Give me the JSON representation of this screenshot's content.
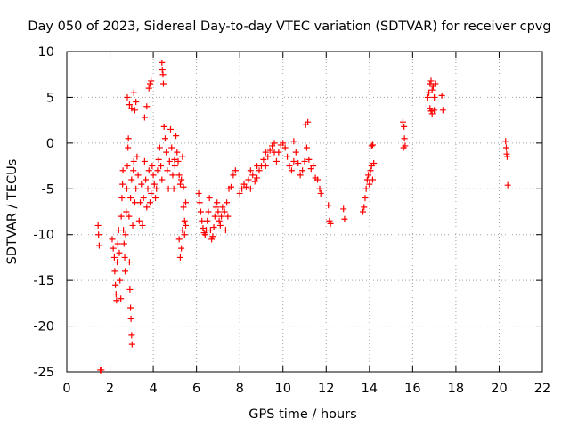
{
  "chart_data": {
    "type": "scatter",
    "title": "Day 050 of 2023, Sidereal Day-to-day VTEC variation (SDTVAR) for receiver cpvg",
    "xlabel": "GPS time / hours",
    "ylabel": "SDTVAR / TECUs",
    "xlim": [
      0,
      22
    ],
    "ylim": [
      -25,
      10
    ],
    "xticks": [
      "0",
      "2",
      "4",
      "6",
      "8",
      "10",
      "12",
      "14",
      "16",
      "18",
      "20",
      "22"
    ],
    "yticks": [
      "-25",
      "-20",
      "-15",
      "-10",
      "-5",
      "0",
      "5",
      "10"
    ],
    "xtick_values": [
      0,
      2,
      4,
      6,
      8,
      10,
      12,
      14,
      16,
      18,
      20,
      22
    ],
    "ytick_values": [
      -25,
      -20,
      -15,
      -10,
      -5,
      0,
      5,
      10
    ],
    "grid": true,
    "marker": "+",
    "color": "#ff0000",
    "series": [
      {
        "name": "SDTVAR",
        "points": [
          [
            1.45,
            -9.0
          ],
          [
            1.47,
            -10.0
          ],
          [
            1.5,
            -11.2
          ],
          [
            1.55,
            -24.8
          ],
          [
            1.6,
            -24.8
          ],
          [
            2.1,
            -10.5
          ],
          [
            2.15,
            -11.5
          ],
          [
            2.2,
            -12.5
          ],
          [
            2.22,
            -14.0
          ],
          [
            2.25,
            -15.5
          ],
          [
            2.28,
            -16.5
          ],
          [
            2.3,
            -17.2
          ],
          [
            2.33,
            -13.0
          ],
          [
            2.36,
            -11.0
          ],
          [
            2.4,
            -9.5
          ],
          [
            2.43,
            -12.0
          ],
          [
            2.46,
            -15.0
          ],
          [
            2.5,
            -17.0
          ],
          [
            2.52,
            -8.0
          ],
          [
            2.55,
            -6.0
          ],
          [
            2.58,
            -4.5
          ],
          [
            2.6,
            -3.0
          ],
          [
            2.62,
            -9.5
          ],
          [
            2.65,
            -11.0
          ],
          [
            2.68,
            -12.5
          ],
          [
            2.7,
            -14.0
          ],
          [
            2.72,
            -10.0
          ],
          [
            2.75,
            -7.5
          ],
          [
            2.78,
            -5.0
          ],
          [
            2.8,
            -2.5
          ],
          [
            2.83,
            -0.5
          ],
          [
            2.85,
            0.5
          ],
          [
            2.9,
            -13.0
          ],
          [
            2.92,
            -16.0
          ],
          [
            2.95,
            -18.0
          ],
          [
            2.97,
            -19.2
          ],
          [
            3.0,
            -21.0
          ],
          [
            3.02,
            -22.0
          ],
          [
            2.88,
            -8.0
          ],
          [
            2.95,
            -6.0
          ],
          [
            3.0,
            -4.0
          ],
          [
            3.05,
            -9.0
          ],
          [
            3.08,
            -3.0
          ],
          [
            3.1,
            -2.0
          ],
          [
            3.15,
            -6.5
          ],
          [
            3.2,
            -5.0
          ],
          [
            3.25,
            -1.5
          ],
          [
            3.3,
            -3.5
          ],
          [
            2.8,
            5.0
          ],
          [
            2.9,
            4.2
          ],
          [
            3.0,
            3.8
          ],
          [
            3.1,
            5.5
          ],
          [
            3.2,
            4.5
          ],
          [
            3.15,
            3.6
          ],
          [
            3.35,
            -8.5
          ],
          [
            3.4,
            -6.5
          ],
          [
            3.45,
            -4.5
          ],
          [
            3.5,
            -9.0
          ],
          [
            3.55,
            -6.0
          ],
          [
            3.6,
            -2.0
          ],
          [
            3.65,
            -4.0
          ],
          [
            3.7,
            -7.0
          ],
          [
            3.75,
            -5.0
          ],
          [
            3.8,
            -3.0
          ],
          [
            3.85,
            -6.5
          ],
          [
            3.9,
            -5.5
          ],
          [
            3.6,
            2.8
          ],
          [
            3.7,
            4.0
          ],
          [
            3.8,
            6.0
          ],
          [
            3.85,
            6.5
          ],
          [
            3.9,
            6.8
          ],
          [
            3.95,
            -2.5
          ],
          [
            4.0,
            -3.5
          ],
          [
            4.05,
            -4.5
          ],
          [
            4.1,
            -6.0
          ],
          [
            4.15,
            -5.0
          ],
          [
            4.2,
            -3.0
          ],
          [
            4.25,
            -1.8
          ],
          [
            4.3,
            -0.5
          ],
          [
            4.35,
            -2.5
          ],
          [
            4.4,
            -4.0
          ],
          [
            4.4,
            8.8
          ],
          [
            4.42,
            8.0
          ],
          [
            4.45,
            7.5
          ],
          [
            4.47,
            6.5
          ],
          [
            4.5,
            1.8
          ],
          [
            4.55,
            0.5
          ],
          [
            4.6,
            -1.0
          ],
          [
            4.65,
            -3.0
          ],
          [
            4.7,
            -5.0
          ],
          [
            4.75,
            -2.0
          ],
          [
            4.8,
            1.5
          ],
          [
            4.85,
            -0.5
          ],
          [
            4.9,
            -3.5
          ],
          [
            4.95,
            -5.0
          ],
          [
            5.0,
            -2.5
          ],
          [
            5.05,
            0.8
          ],
          [
            5.1,
            -1.0
          ],
          [
            4.98,
            -1.8
          ],
          [
            5.15,
            -2.0
          ],
          [
            5.2,
            -3.5
          ],
          [
            5.25,
            -4.5
          ],
          [
            5.3,
            -4.0
          ],
          [
            5.35,
            -1.5
          ],
          [
            5.4,
            -4.8
          ],
          [
            5.2,
            -10.5
          ],
          [
            5.25,
            -12.5
          ],
          [
            5.3,
            -11.5
          ],
          [
            5.35,
            -9.5
          ],
          [
            5.4,
            -7.0
          ],
          [
            5.45,
            -8.5
          ],
          [
            5.5,
            -6.5
          ],
          [
            5.45,
            -10.0
          ],
          [
            5.5,
            -9.0
          ],
          [
            6.1,
            -5.5
          ],
          [
            6.15,
            -6.5
          ],
          [
            6.2,
            -7.5
          ],
          [
            6.25,
            -8.5
          ],
          [
            6.3,
            -9.3
          ],
          [
            6.35,
            -9.8
          ],
          [
            6.4,
            -10.0
          ],
          [
            6.45,
            -9.5
          ],
          [
            6.5,
            -8.5
          ],
          [
            6.55,
            -7.5
          ],
          [
            6.6,
            -6.0
          ],
          [
            6.65,
            -9.5
          ],
          [
            6.7,
            -10.5
          ],
          [
            6.75,
            -10.2
          ],
          [
            6.8,
            -9.2
          ],
          [
            6.85,
            -8.0
          ],
          [
            6.9,
            -7.0
          ],
          [
            6.95,
            -6.5
          ],
          [
            7.0,
            -7.5
          ],
          [
            7.05,
            -8.5
          ],
          [
            7.1,
            -9.0
          ],
          [
            7.15,
            -8.0
          ],
          [
            7.2,
            -7.0
          ],
          [
            7.3,
            -7.5
          ],
          [
            7.4,
            -6.5
          ],
          [
            7.5,
            -5.0
          ],
          [
            7.6,
            -4.8
          ],
          [
            7.7,
            -3.5
          ],
          [
            7.8,
            -3.0
          ],
          [
            7.35,
            -9.5
          ],
          [
            7.45,
            -8.0
          ],
          [
            8.0,
            -5.5
          ],
          [
            8.1,
            -5.0
          ],
          [
            8.2,
            -4.5
          ],
          [
            8.3,
            -4.8
          ],
          [
            8.4,
            -4.0
          ],
          [
            8.5,
            -5.0
          ],
          [
            8.6,
            -3.5
          ],
          [
            8.7,
            -4.2
          ],
          [
            8.8,
            -3.8
          ],
          [
            8.9,
            -3.0
          ],
          [
            9.0,
            -2.5
          ],
          [
            9.1,
            -1.8
          ],
          [
            9.2,
            -2.5
          ],
          [
            9.3,
            -1.5
          ],
          [
            9.4,
            -0.8
          ],
          [
            9.5,
            -0.3
          ],
          [
            9.6,
            -1.0
          ],
          [
            9.7,
            -2.0
          ],
          [
            9.8,
            -1.0
          ],
          [
            9.9,
            -0.2
          ],
          [
            10.0,
            0.0
          ],
          [
            10.1,
            -0.5
          ],
          [
            10.2,
            -1.5
          ],
          [
            10.3,
            -2.5
          ],
          [
            10.4,
            -3.0
          ],
          [
            10.5,
            -2.0
          ],
          [
            10.6,
            -1.0
          ],
          [
            10.7,
            -2.2
          ],
          [
            10.8,
            -3.5
          ],
          [
            10.9,
            -3.0
          ],
          [
            11.0,
            -2.0
          ],
          [
            11.1,
            -0.5
          ],
          [
            11.05,
            2.0
          ],
          [
            11.15,
            2.3
          ],
          [
            11.2,
            -1.8
          ],
          [
            11.3,
            -2.8
          ],
          [
            11.4,
            -2.5
          ],
          [
            11.5,
            -3.8
          ],
          [
            11.6,
            -4.0
          ],
          [
            11.7,
            -5.0
          ],
          [
            11.75,
            -5.5
          ],
          [
            8.5,
            -3.0
          ],
          [
            8.8,
            -2.5
          ],
          [
            9.2,
            -1.0
          ],
          [
            9.6,
            0.0
          ],
          [
            10.5,
            0.2
          ],
          [
            12.1,
            -6.8
          ],
          [
            12.15,
            -8.5
          ],
          [
            12.2,
            -8.8
          ],
          [
            12.8,
            -7.2
          ],
          [
            12.85,
            -8.3
          ],
          [
            13.7,
            -7.5
          ],
          [
            13.75,
            -7.0
          ],
          [
            13.8,
            -6.0
          ],
          [
            13.85,
            -5.0
          ],
          [
            13.9,
            -4.0
          ],
          [
            13.95,
            -3.5
          ],
          [
            14.0,
            -4.5
          ],
          [
            14.05,
            -3.0
          ],
          [
            14.1,
            -2.5
          ],
          [
            14.15,
            -4.0
          ],
          [
            14.2,
            -2.2
          ],
          [
            14.1,
            -0.3
          ],
          [
            14.15,
            -0.2
          ],
          [
            15.55,
            2.3
          ],
          [
            15.6,
            1.8
          ],
          [
            15.62,
            0.5
          ],
          [
            15.65,
            -0.3
          ],
          [
            15.58,
            -0.5
          ],
          [
            16.7,
            5.0
          ],
          [
            16.75,
            5.5
          ],
          [
            16.8,
            6.5
          ],
          [
            16.85,
            6.8
          ],
          [
            16.9,
            5.8
          ],
          [
            16.95,
            6.2
          ],
          [
            17.0,
            5.0
          ],
          [
            17.05,
            6.5
          ],
          [
            16.8,
            3.8
          ],
          [
            16.85,
            3.5
          ],
          [
            16.9,
            3.2
          ],
          [
            17.0,
            3.6
          ],
          [
            17.35,
            5.2
          ],
          [
            17.4,
            3.6
          ],
          [
            20.3,
            0.2
          ],
          [
            20.33,
            -0.5
          ],
          [
            20.35,
            -1.2
          ],
          [
            20.37,
            -1.5
          ],
          [
            20.4,
            -4.6
          ]
        ]
      }
    ]
  }
}
